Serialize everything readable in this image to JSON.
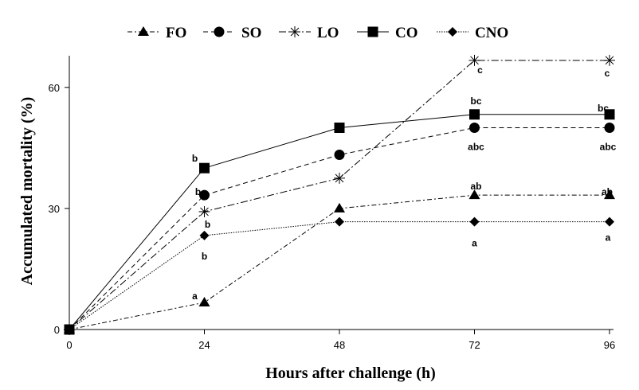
{
  "chart_data": {
    "type": "line",
    "xlabel": "Hours after challenge (h)",
    "ylabel": "Accumulated mortality (%)",
    "x": [
      0,
      24,
      48,
      72,
      96
    ],
    "xticks": [
      "0",
      "24",
      "48",
      "72",
      "96"
    ],
    "yticks": [
      "0",
      "30",
      "60"
    ],
    "xlim": [
      0,
      96
    ],
    "ylim": [
      0,
      70
    ],
    "grid": false,
    "legend_position": "top",
    "series": [
      {
        "name": "FO",
        "marker": "triangle",
        "dash": "dash-dot",
        "values": [
          0,
          6.7,
          30,
          33.3,
          33.3
        ]
      },
      {
        "name": "SO",
        "marker": "circle",
        "dash": "dashed",
        "values": [
          0,
          33.3,
          43.3,
          50,
          50
        ]
      },
      {
        "name": "LO",
        "marker": "asterisk",
        "dash": "long-dash-dot",
        "values": [
          0,
          29.2,
          37.5,
          66.7,
          66.7
        ]
      },
      {
        "name": "CO",
        "marker": "square",
        "dash": "solid",
        "values": [
          0,
          40,
          50,
          53.3,
          53.3
        ]
      },
      {
        "name": "CNO",
        "marker": "diamond",
        "dash": "dotted",
        "values": [
          0,
          23.3,
          26.7,
          26.7,
          26.7
        ]
      }
    ],
    "annotations": [
      {
        "series": "CO",
        "x": 24,
        "text": "b"
      },
      {
        "series": "SO",
        "x": 24,
        "text": "b"
      },
      {
        "series": "LO",
        "x": 24,
        "text": "b"
      },
      {
        "series": "CNO",
        "x": 24,
        "text": "b"
      },
      {
        "series": "FO",
        "x": 24,
        "text": "a"
      },
      {
        "series": "LO",
        "x": 72,
        "text": "c"
      },
      {
        "series": "CO",
        "x": 72,
        "text": "bc"
      },
      {
        "series": "SO",
        "x": 72,
        "text": "abc"
      },
      {
        "series": "FO",
        "x": 72,
        "text": "ab"
      },
      {
        "series": "CNO",
        "x": 72,
        "text": "a"
      },
      {
        "series": "LO",
        "x": 96,
        "text": "c"
      },
      {
        "series": "CO",
        "x": 96,
        "text": "bc"
      },
      {
        "series": "SO",
        "x": 96,
        "text": "abc"
      },
      {
        "series": "FO",
        "x": 96,
        "text": "ab"
      },
      {
        "series": "CNO",
        "x": 96,
        "text": "a"
      }
    ]
  }
}
